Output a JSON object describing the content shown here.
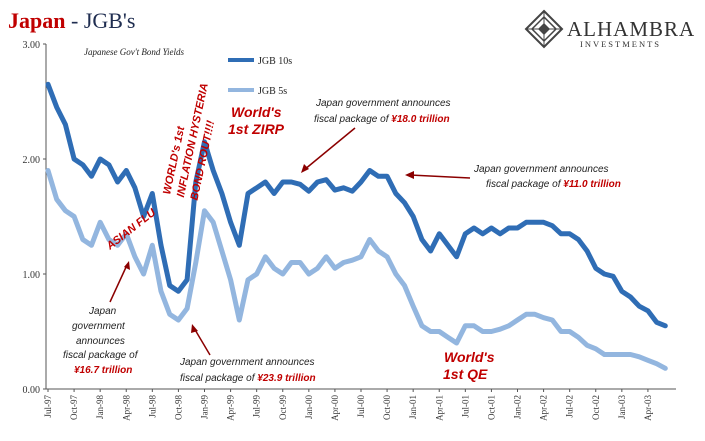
{
  "header": {
    "title_main": "Japan",
    "title_sep": " - ",
    "title_sub": "JGB's"
  },
  "logo": {
    "name": "ALHAMBRA",
    "tagline": "INVESTMENTS"
  },
  "chart_data": {
    "type": "line",
    "subtitle": "Japanese Gov't Bond Yields",
    "ylim": [
      0,
      3
    ],
    "y_ticks": [
      "0.00",
      "1.00",
      "2.00",
      "3.00"
    ],
    "x_ticks": [
      "Jul-97",
      "Oct-97",
      "Jan-98",
      "Apr-98",
      "Jul-98",
      "Oct-98",
      "Jan-99",
      "Apr-99",
      "Jul-99",
      "Oct-99",
      "Jan-00",
      "Apr-00",
      "Jul-00",
      "Oct-00",
      "Jan-01",
      "Apr-01",
      "Jul-01",
      "Oct-01",
      "Jan-02",
      "Apr-02",
      "Jul-02",
      "Oct-02",
      "Jan-03",
      "Apr-03"
    ],
    "grid": false,
    "legend_position": "top-left",
    "series": [
      {
        "name": "JGB 10s",
        "color": "#2f6db5",
        "x": [
          "Jul-97",
          "Aug-97",
          "Sep-97",
          "Oct-97",
          "Nov-97",
          "Dec-97",
          "Jan-98",
          "Feb-98",
          "Mar-98",
          "Apr-98",
          "May-98",
          "Jun-98",
          "Jul-98",
          "Aug-98",
          "Sep-98",
          "Oct-98",
          "Nov-98",
          "Dec-98",
          "Jan-99",
          "Feb-99",
          "Mar-99",
          "Apr-99",
          "May-99",
          "Jun-99",
          "Jul-99",
          "Aug-99",
          "Sep-99",
          "Oct-99",
          "Nov-99",
          "Dec-99",
          "Jan-00",
          "Feb-00",
          "Mar-00",
          "Apr-00",
          "May-00",
          "Jun-00",
          "Jul-00",
          "Aug-00",
          "Sep-00",
          "Oct-00",
          "Nov-00",
          "Dec-00",
          "Jan-01",
          "Feb-01",
          "Mar-01",
          "Apr-01",
          "May-01",
          "Jun-01",
          "Jul-01",
          "Aug-01",
          "Sep-01",
          "Oct-01",
          "Nov-01",
          "Dec-01",
          "Jan-02",
          "Feb-02",
          "Mar-02",
          "Apr-02",
          "May-02",
          "Jun-02",
          "Jul-02",
          "Aug-02",
          "Sep-02",
          "Oct-02",
          "Nov-02",
          "Dec-02",
          "Jan-03",
          "Feb-03",
          "Mar-03",
          "Apr-03",
          "May-03",
          "Jun-03"
        ],
        "values": [
          2.65,
          2.45,
          2.3,
          2.0,
          1.95,
          1.85,
          2.0,
          1.95,
          1.8,
          1.9,
          1.75,
          1.5,
          1.7,
          1.25,
          0.9,
          0.85,
          0.95,
          1.8,
          2.15,
          1.9,
          1.7,
          1.45,
          1.25,
          1.7,
          1.75,
          1.8,
          1.7,
          1.8,
          1.8,
          1.78,
          1.72,
          1.8,
          1.82,
          1.73,
          1.75,
          1.72,
          1.8,
          1.9,
          1.85,
          1.85,
          1.7,
          1.62,
          1.5,
          1.3,
          1.2,
          1.35,
          1.25,
          1.15,
          1.35,
          1.4,
          1.35,
          1.4,
          1.35,
          1.4,
          1.4,
          1.45,
          1.45,
          1.45,
          1.42,
          1.35,
          1.35,
          1.3,
          1.2,
          1.05,
          1.0,
          0.98,
          0.85,
          0.8,
          0.72,
          0.68,
          0.58,
          0.55
        ]
      },
      {
        "name": "JGB 5s",
        "color": "#93b6df",
        "x": [
          "Jul-97",
          "Aug-97",
          "Sep-97",
          "Oct-97",
          "Nov-97",
          "Dec-97",
          "Jan-98",
          "Feb-98",
          "Mar-98",
          "Apr-98",
          "May-98",
          "Jun-98",
          "Jul-98",
          "Aug-98",
          "Sep-98",
          "Oct-98",
          "Nov-98",
          "Dec-98",
          "Jan-99",
          "Feb-99",
          "Mar-99",
          "Apr-99",
          "May-99",
          "Jun-99",
          "Jul-99",
          "Aug-99",
          "Sep-99",
          "Oct-99",
          "Nov-99",
          "Dec-99",
          "Jan-00",
          "Feb-00",
          "Mar-00",
          "Apr-00",
          "May-00",
          "Jun-00",
          "Jul-00",
          "Aug-00",
          "Sep-00",
          "Oct-00",
          "Nov-00",
          "Dec-00",
          "Jan-01",
          "Feb-01",
          "Mar-01",
          "Apr-01",
          "May-01",
          "Jun-01",
          "Jul-01",
          "Aug-01",
          "Sep-01",
          "Oct-01",
          "Nov-01",
          "Dec-01",
          "Jan-02",
          "Feb-02",
          "Mar-02",
          "Apr-02",
          "May-02",
          "Jun-02",
          "Jul-02",
          "Aug-02",
          "Sep-02",
          "Oct-02",
          "Nov-02",
          "Dec-02",
          "Jan-03",
          "Feb-03",
          "Mar-03",
          "Apr-03",
          "May-03",
          "Jun-03"
        ],
        "values": [
          1.9,
          1.65,
          1.55,
          1.5,
          1.3,
          1.25,
          1.45,
          1.3,
          1.25,
          1.35,
          1.15,
          1.0,
          1.25,
          0.85,
          0.65,
          0.6,
          0.7,
          1.1,
          1.55,
          1.45,
          1.2,
          0.95,
          0.6,
          0.95,
          1.0,
          1.15,
          1.05,
          1.0,
          1.1,
          1.1,
          1.0,
          1.05,
          1.15,
          1.05,
          1.1,
          1.12,
          1.15,
          1.3,
          1.2,
          1.15,
          1.0,
          0.9,
          0.72,
          0.55,
          0.5,
          0.5,
          0.45,
          0.4,
          0.55,
          0.55,
          0.5,
          0.5,
          0.52,
          0.55,
          0.6,
          0.65,
          0.65,
          0.62,
          0.6,
          0.5,
          0.5,
          0.45,
          0.38,
          0.35,
          0.3,
          0.3,
          0.3,
          0.3,
          0.28,
          0.25,
          0.22,
          0.18
        ]
      }
    ]
  },
  "annotations": {
    "jgb_10s": "JGB 10s",
    "jgb_5s": "JGB 5s",
    "inflation_l1": "WORLD's 1st",
    "inflation_l2": "INFLATION HYSTERIA",
    "inflation_l3": "BOND ROUT!!!!",
    "zirp_l1": "World's",
    "zirp_l2": "1st ZIRP",
    "asian_flu": "ASIAN FLU",
    "qe_l1": "World's",
    "qe_l2": "1st QE",
    "fp18_l1": "Japan government announces",
    "fp18_l2": "fiscal package of ",
    "fp18_amt": "¥18.0 trillion",
    "fp11_l1": "Japan government announces",
    "fp11_l2": "fiscal package of ",
    "fp11_amt": "¥11.0 trillion",
    "fp167_l1": "Japan",
    "fp167_l2": "government",
    "fp167_l3": "announces",
    "fp167_l4": "fiscal package of",
    "fp167_amt": "¥16.7 trillion",
    "fp239_l1": "Japan government announces",
    "fp239_l2": "fiscal package of ",
    "fp239_amt": "¥23.9 trillion"
  },
  "colors": {
    "title_red": "#c00000",
    "title_dark": "#1f2d50",
    "annotation_red": "#c00000"
  }
}
